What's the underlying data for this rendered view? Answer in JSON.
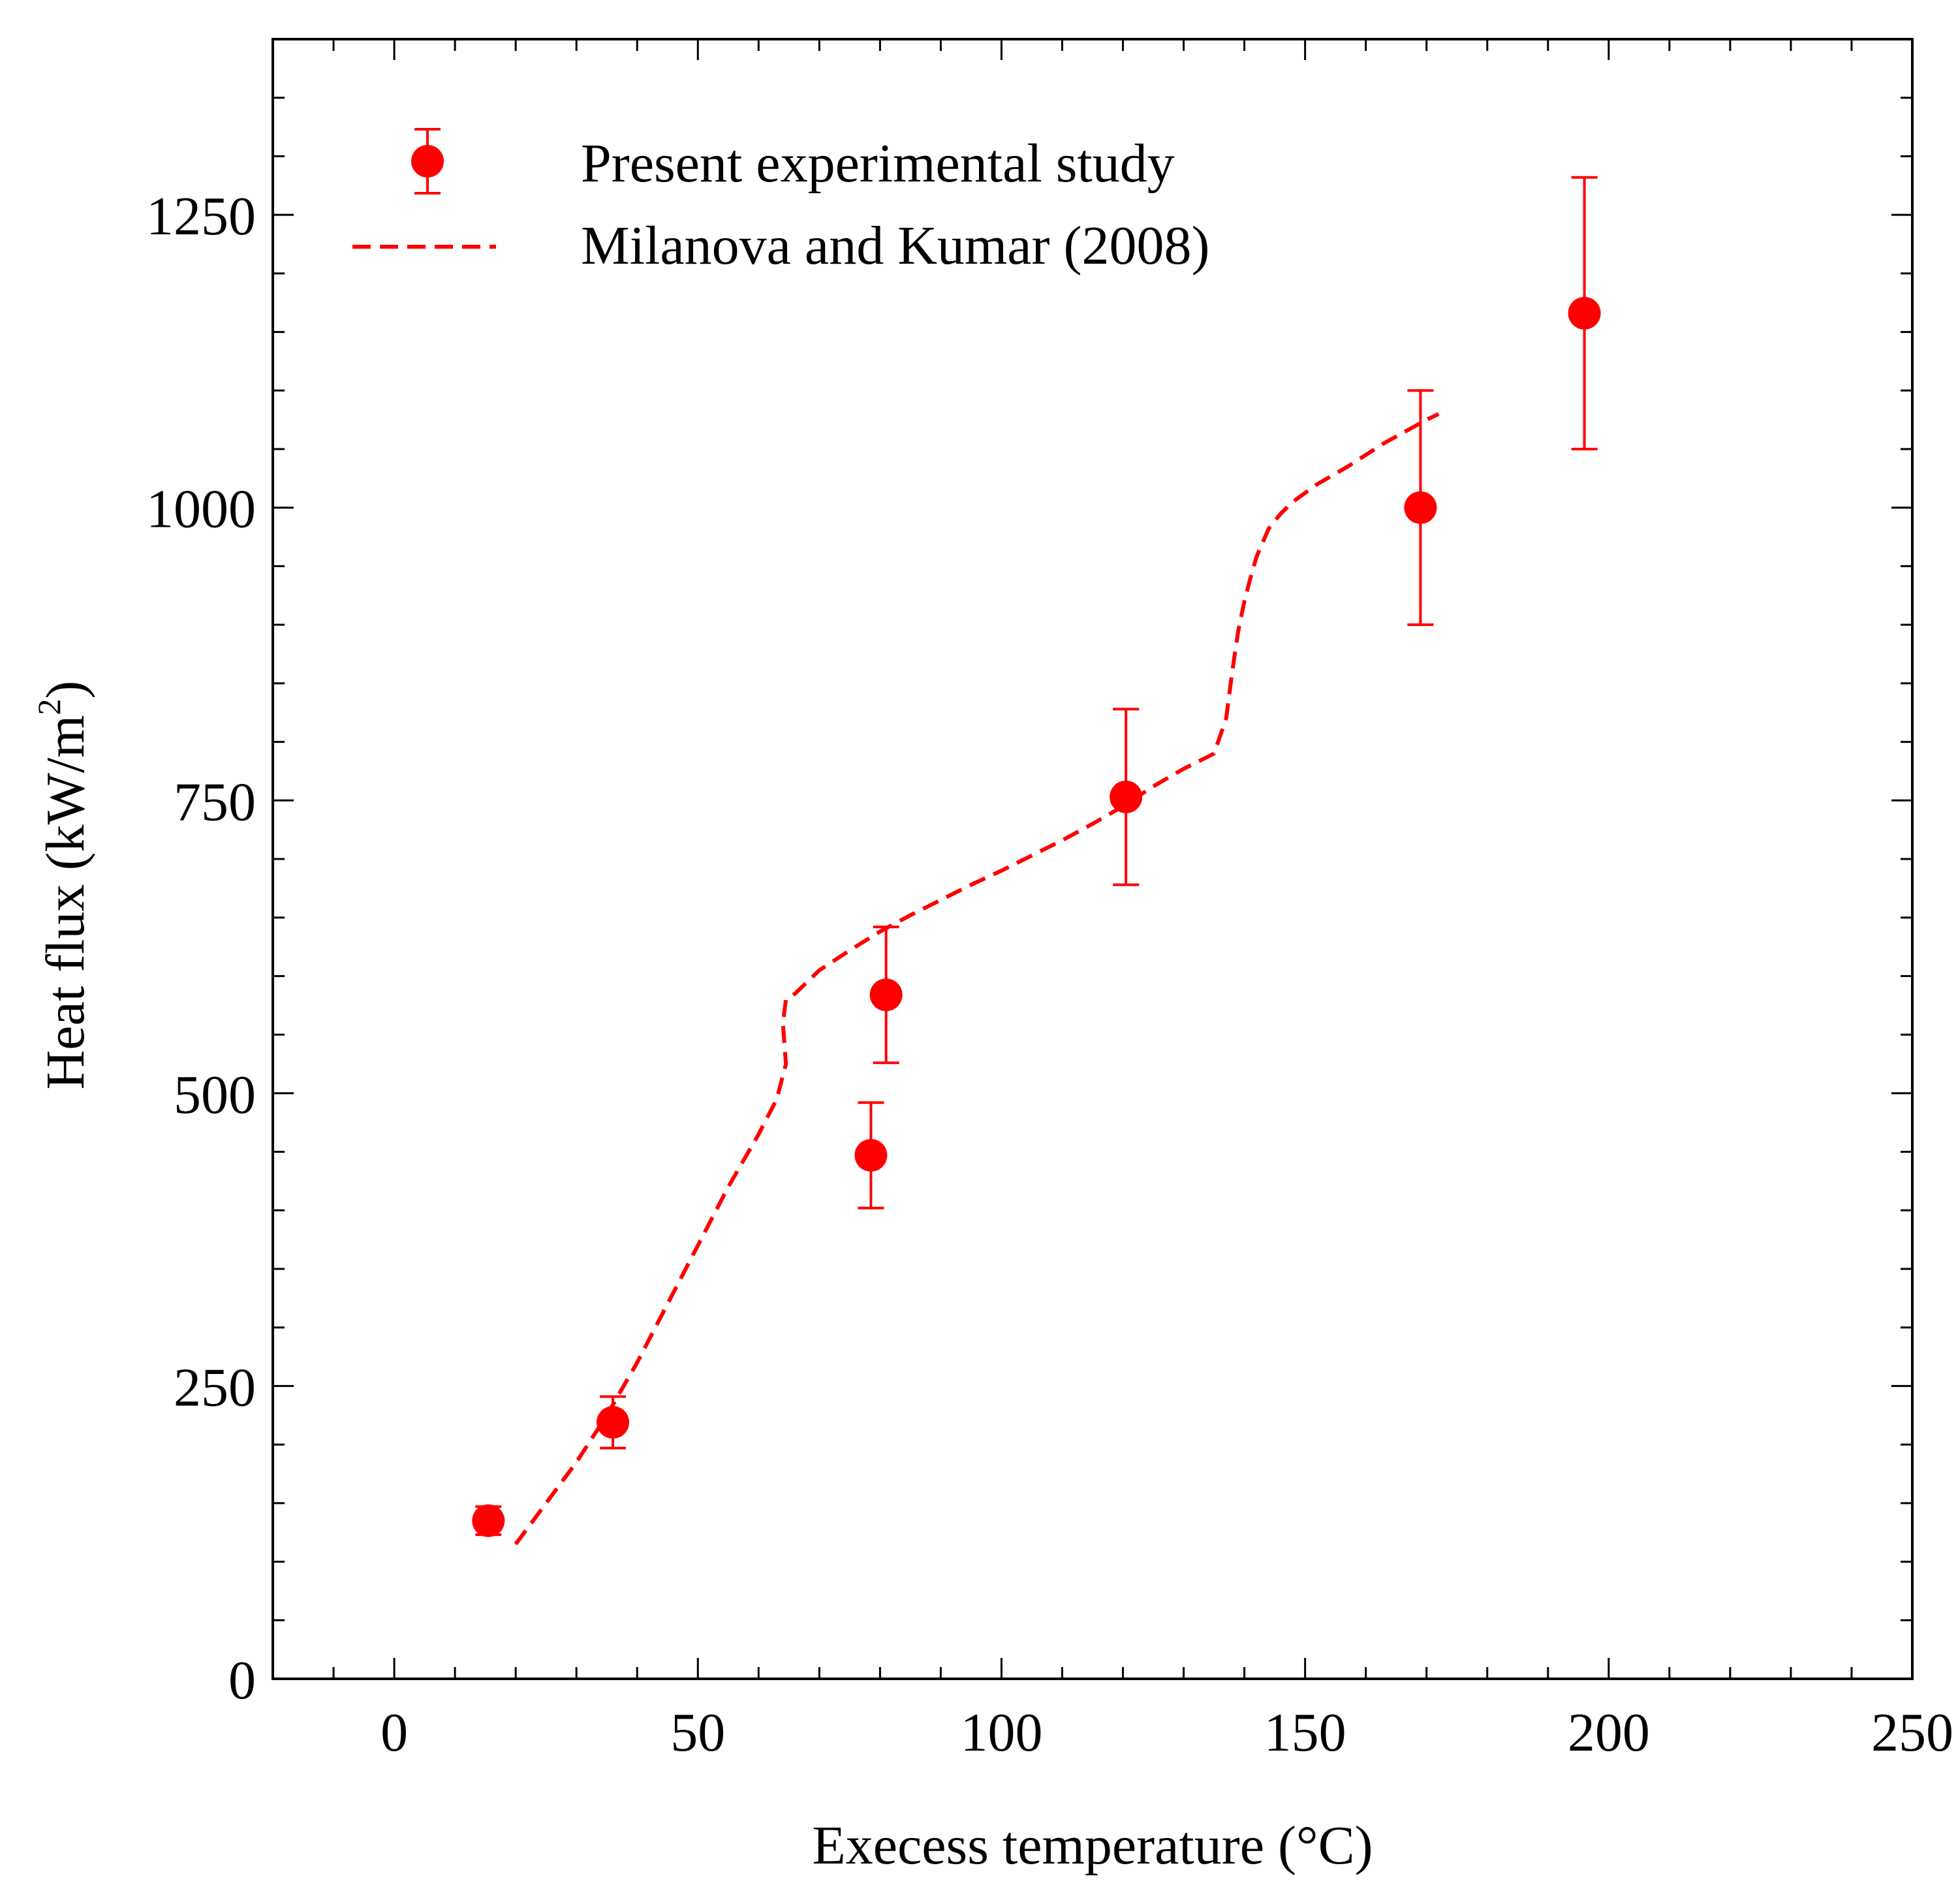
{
  "chart_data": {
    "type": "scatter",
    "xlabel": "Execess temperature (°C)",
    "ylabel": {
      "prefix": "Heat flux (kW/m",
      "superscript": "2",
      "suffix": ")"
    },
    "xlim": [
      -20,
      250
    ],
    "ylim": [
      0,
      1400
    ],
    "xticks": [
      0,
      50,
      100,
      150,
      200,
      250
    ],
    "xtick_labels": [
      "0",
      "50",
      "100",
      "150",
      "200",
      "250"
    ],
    "xminor_step": 10,
    "yticks": [
      0,
      250,
      500,
      750,
      1000,
      1250
    ],
    "ytick_labels": [
      "0",
      "250",
      "500",
      "750",
      "1000",
      "1250"
    ],
    "yminor_step": 50,
    "legend_position": "top-left",
    "colors": {
      "series": "#ff0000",
      "axis": "#000000",
      "background": "#ffffff"
    },
    "series": [
      {
        "name": "Present experimental study",
        "style": "markers-with-errorbars",
        "points": [
          {
            "x": 15.5,
            "y": 135,
            "err_low": 12,
            "err_high": 12
          },
          {
            "x": 36,
            "y": 219,
            "err_low": 22,
            "err_high": 22
          },
          {
            "x": 78.5,
            "y": 447,
            "err_low": 45,
            "err_high": 45
          },
          {
            "x": 81,
            "y": 584,
            "err_low": 58,
            "err_high": 58
          },
          {
            "x": 120.5,
            "y": 753,
            "err_low": 75,
            "err_high": 75
          },
          {
            "x": 169,
            "y": 1000,
            "err_low": 100,
            "err_high": 100
          },
          {
            "x": 196,
            "y": 1166,
            "err_low": 116,
            "err_high": 116
          }
        ]
      },
      {
        "name": "Milanova and Kumar (2008)",
        "style": "dashed-line",
        "x": [
          20,
          25,
          30,
          35,
          40,
          45,
          50,
          55,
          60,
          63,
          64.5,
          64,
          64.5,
          66,
          70,
          75,
          80,
          85,
          90,
          95,
          100,
          105,
          110,
          115,
          120,
          125,
          130,
          135,
          137,
          138,
          139,
          140,
          141,
          142,
          143,
          144,
          146,
          148,
          152,
          157,
          163,
          170,
          172
        ],
        "y": [
          115,
          150,
          185,
          225,
          270,
          320,
          370,
          420,
          465,
          495,
          525,
          560,
          580,
          585,
          605,
          622,
          638,
          652,
          665,
          678,
          690,
          703,
          716,
          730,
          745,
          762,
          777,
          790,
          820,
          860,
          895,
          920,
          940,
          958,
          970,
          982,
          995,
          1005,
          1020,
          1035,
          1055,
          1075,
          1080
        ]
      }
    ]
  }
}
